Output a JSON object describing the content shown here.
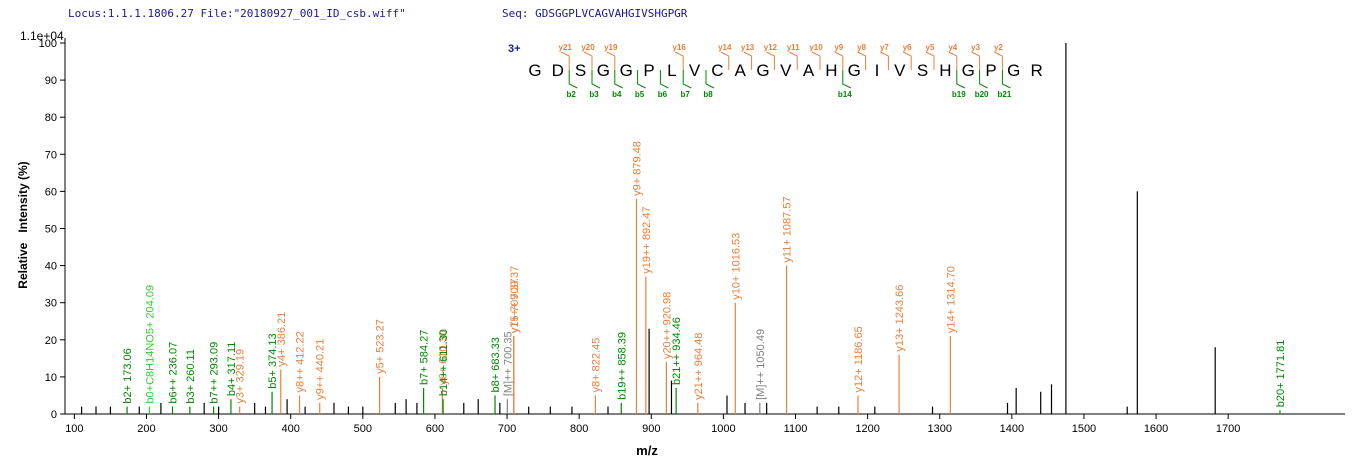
{
  "chart_data": {
    "type": "stem",
    "header": "Locus:1.1.1.1806.27 File:\"20180927_001_ID_csb.wiff\"",
    "sequence_label": "Seq: GDSGGPLVCAGVAHGIVSHGPGR",
    "scale_label": "1.1e+04",
    "x_label": "m/z",
    "y_label": "Relative   Intensity (%)",
    "xlim": [
      87,
      1862
    ],
    "ylim": [
      0,
      100
    ],
    "xticks": [
      100,
      200,
      300,
      400,
      500,
      600,
      700,
      800,
      900,
      1000,
      1100,
      1200,
      1300,
      1400,
      1500,
      1600,
      1700
    ],
    "yticks": [
      0,
      10,
      20,
      30,
      40,
      50,
      60,
      70,
      80,
      90,
      100
    ],
    "peaks": {
      "x": [
        173.06,
        204.09,
        236.07,
        260.11,
        293.09,
        317.11,
        329.19,
        374.13,
        386.21,
        412.22,
        440.21,
        523.27,
        584.27,
        610.3,
        611.3,
        683.33,
        700.35,
        709.37,
        709.37,
        822.45,
        858.39,
        879.48,
        892.47,
        920.98,
        934.46,
        964.48,
        1016.53,
        1050.49,
        1087.57,
        1186.65,
        1243.66,
        1314.7,
        1771.81,
        110,
        130,
        150,
        190,
        220,
        280,
        300,
        350,
        365,
        395,
        420,
        460,
        480,
        500,
        545,
        560,
        575,
        640,
        660,
        690,
        730,
        760,
        790,
        840,
        897,
        928,
        1005,
        1030,
        1060,
        1130,
        1160,
        1210,
        1290,
        1394,
        1406,
        1440,
        1455,
        1475,
        1560,
        1574,
        1682
      ],
      "values": [
        2,
        2,
        2,
        2,
        2,
        4,
        2,
        6,
        12,
        5,
        3,
        10,
        7,
        7,
        4,
        5,
        4,
        21,
        21,
        5,
        3,
        58,
        37,
        14,
        7,
        3,
        30,
        3,
        40,
        5,
        16,
        21,
        1,
        2,
        2,
        2,
        2,
        3,
        3,
        2,
        3,
        2,
        4,
        2,
        3,
        2,
        2,
        3,
        4,
        3,
        3,
        4,
        3,
        2,
        2,
        2,
        2,
        23,
        9,
        5,
        3,
        3,
        2,
        2,
        2,
        2,
        3,
        7,
        6,
        8,
        100,
        2,
        60,
        18
      ],
      "labels": [
        "b2+ 173.06",
        "b0+C8H14NO5+ 204.09",
        "b6++ 236.07",
        "b3+ 260.11",
        "b7++ 293.09",
        "b4+ 317.11",
        "y3+ 329.19",
        "b5+ 374.13",
        "y4+ 386.21",
        "y8++ 412.22",
        "y9++ 440.21",
        "y5+ 523.27",
        "b7+ 584.27",
        "y6+ 610.30",
        "b14++ 611.30",
        "b8+ 683.33",
        "[M]++ 700.35",
        "y7+ 709.37",
        "y15++ 709.37",
        "y8+ 822.45",
        "b19++ 858.39",
        "y9+ 879.48",
        "y19++ 892.47",
        "y20++ 920.98",
        "b21++ 934.46",
        "y21++ 964.48",
        "y10+ 1016.53",
        "[M]++ 1050.49",
        "y11+ 1087.57",
        "y12+ 1186.65",
        "y13+ 1243.66",
        "y14+ 1314.70",
        "b20+ 1771.81",
        null,
        null,
        null,
        null,
        null,
        null,
        null,
        null,
        null,
        null,
        null,
        null,
        null,
        null,
        null,
        null,
        null,
        null,
        null,
        null,
        null,
        null,
        null,
        null,
        null,
        null,
        null,
        null,
        null,
        null,
        null,
        null,
        null,
        null,
        null,
        null,
        null,
        null,
        null,
        null,
        null
      ],
      "colors": [
        "#008800",
        "#33cc33",
        "#008800",
        "#008800",
        "#008800",
        "#008800",
        "#e8803c",
        "#008800",
        "#e8803c",
        "#e8803c",
        "#e8803c",
        "#e8803c",
        "#008800",
        "#e8803c",
        "#008800",
        "#008800",
        "#808080",
        "#e8803c",
        "#e8803c",
        "#e8803c",
        "#008800",
        "#e8803c",
        "#e8803c",
        "#e8803c",
        "#008800",
        "#e8803c",
        "#e8803c",
        "#808080",
        "#e8803c",
        "#e8803c",
        "#e8803c",
        "#e8803c",
        "#008800",
        "#000",
        "#000",
        "#000",
        "#000",
        "#000",
        "#000",
        "#000",
        "#000",
        "#000",
        "#000",
        "#000",
        "#000",
        "#000",
        "#000",
        "#000",
        "#000",
        "#000",
        "#000",
        "#000",
        "#000",
        "#000",
        "#000",
        "#000",
        "#000",
        "#000",
        "#000",
        "#000",
        "#000",
        "#000",
        "#000",
        "#000",
        "#000",
        "#000",
        "#000",
        "#000",
        "#000",
        "#000",
        "#000",
        "#000",
        "#000",
        "#000"
      ]
    },
    "fragment_map": {
      "charge": "3+",
      "residues": [
        "G",
        "D",
        "S",
        "G",
        "G",
        "P",
        "L",
        "V",
        "C",
        "A",
        "G",
        "V",
        "A",
        "H",
        "G",
        "I",
        "V",
        "S",
        "H",
        "G",
        "P",
        "G",
        "R"
      ],
      "y_labels": [
        null,
        "y21",
        "y20",
        "y19",
        null,
        null,
        "y16",
        null,
        "y14",
        "y13",
        "y12",
        "y11",
        "y10",
        "y9",
        "y8",
        "y7",
        "y6",
        "y5",
        "y4",
        "y3",
        "y2",
        null
      ],
      "b_labels": [
        null,
        "b2",
        "b3",
        "b4",
        "b5",
        "b6",
        "b7",
        "b8",
        null,
        null,
        null,
        null,
        null,
        "b14",
        null,
        null,
        null,
        null,
        "b19",
        "b20",
        "b21",
        null
      ]
    }
  }
}
